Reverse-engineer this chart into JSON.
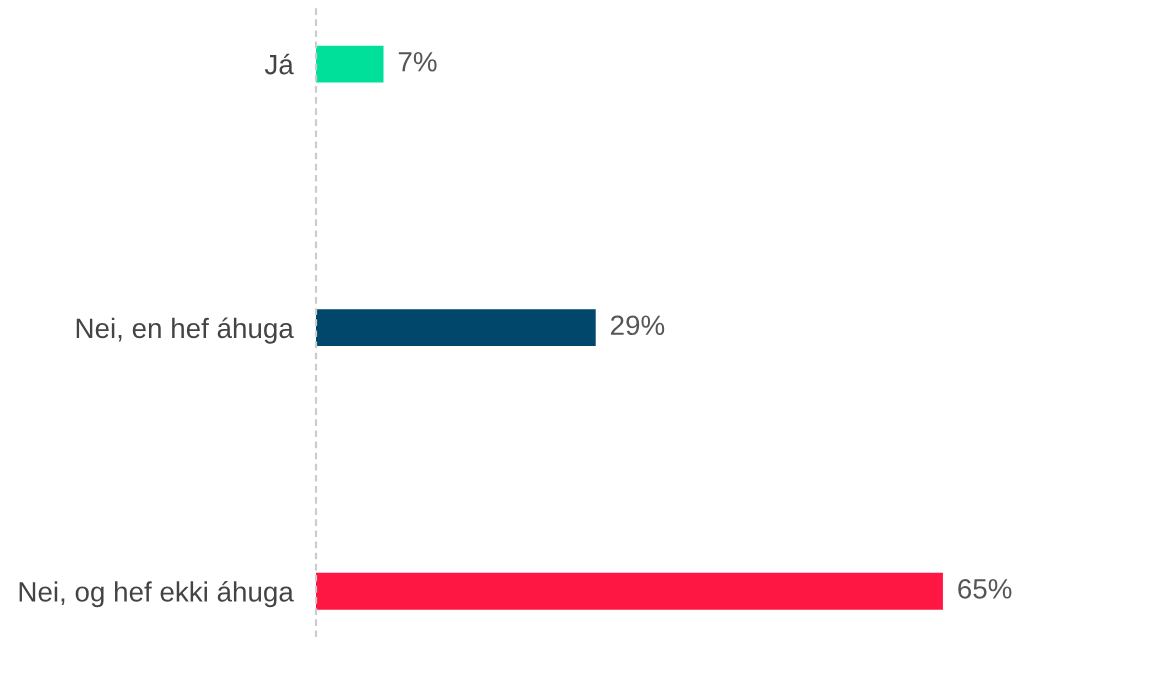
{
  "chart_data": {
    "type": "bar",
    "orientation": "horizontal",
    "categories": [
      "Já",
      "Nei, en hef áhuga",
      "Nei, og hef ekki áhuga"
    ],
    "values": [
      7,
      29,
      65
    ],
    "colors": [
      "#00e09b",
      "#00476b",
      "#ff1744"
    ],
    "data_labels": true,
    "value_labels": [
      "7%",
      "29%",
      "65%"
    ],
    "grid": false,
    "legend": false
  }
}
